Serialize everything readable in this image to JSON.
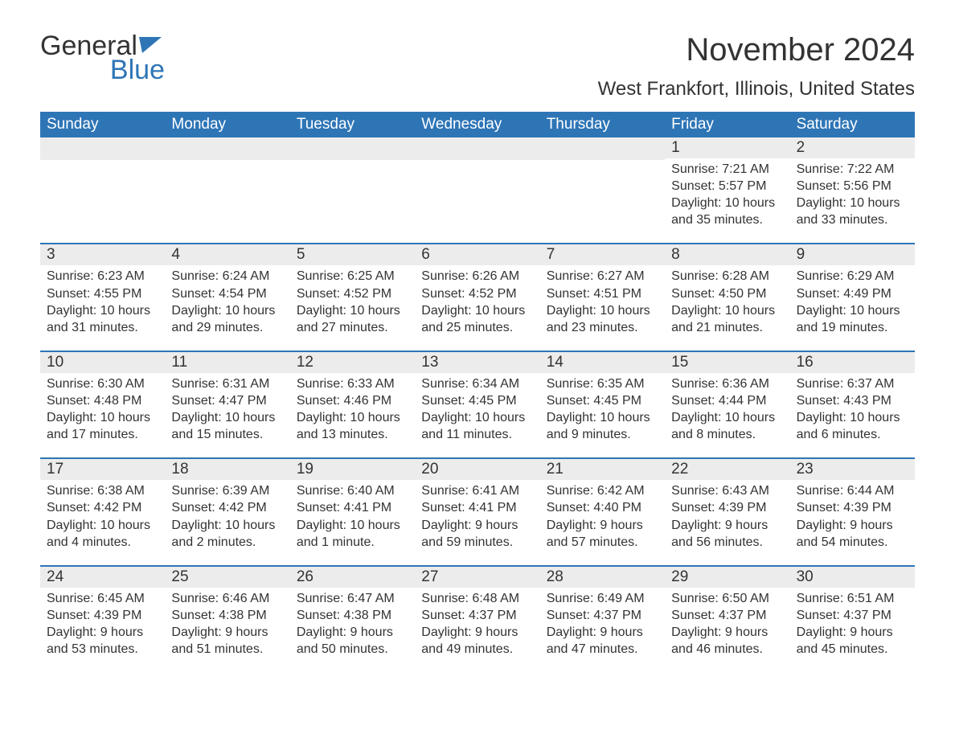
{
  "logo": {
    "text_gray": "General",
    "text_blue": "Blue",
    "icon_color": "#2e75b6"
  },
  "title": "November 2024",
  "location": "West Frankfort, Illinois, United States",
  "colors": {
    "header_bg": "#2e75b6",
    "header_text": "#ffffff",
    "daynum_bg": "#ececec",
    "text": "#333333",
    "border": "#2e75b6",
    "background": "#ffffff"
  },
  "weekdays": [
    "Sunday",
    "Monday",
    "Tuesday",
    "Wednesday",
    "Thursday",
    "Friday",
    "Saturday"
  ],
  "weeks": [
    [
      {
        "day": "",
        "sunrise": "",
        "sunset": "",
        "daylight": ""
      },
      {
        "day": "",
        "sunrise": "",
        "sunset": "",
        "daylight": ""
      },
      {
        "day": "",
        "sunrise": "",
        "sunset": "",
        "daylight": ""
      },
      {
        "day": "",
        "sunrise": "",
        "sunset": "",
        "daylight": ""
      },
      {
        "day": "",
        "sunrise": "",
        "sunset": "",
        "daylight": ""
      },
      {
        "day": "1",
        "sunrise": "Sunrise: 7:21 AM",
        "sunset": "Sunset: 5:57 PM",
        "daylight": "Daylight: 10 hours and 35 minutes."
      },
      {
        "day": "2",
        "sunrise": "Sunrise: 7:22 AM",
        "sunset": "Sunset: 5:56 PM",
        "daylight": "Daylight: 10 hours and 33 minutes."
      }
    ],
    [
      {
        "day": "3",
        "sunrise": "Sunrise: 6:23 AM",
        "sunset": "Sunset: 4:55 PM",
        "daylight": "Daylight: 10 hours and 31 minutes."
      },
      {
        "day": "4",
        "sunrise": "Sunrise: 6:24 AM",
        "sunset": "Sunset: 4:54 PM",
        "daylight": "Daylight: 10 hours and 29 minutes."
      },
      {
        "day": "5",
        "sunrise": "Sunrise: 6:25 AM",
        "sunset": "Sunset: 4:52 PM",
        "daylight": "Daylight: 10 hours and 27 minutes."
      },
      {
        "day": "6",
        "sunrise": "Sunrise: 6:26 AM",
        "sunset": "Sunset: 4:52 PM",
        "daylight": "Daylight: 10 hours and 25 minutes."
      },
      {
        "day": "7",
        "sunrise": "Sunrise: 6:27 AM",
        "sunset": "Sunset: 4:51 PM",
        "daylight": "Daylight: 10 hours and 23 minutes."
      },
      {
        "day": "8",
        "sunrise": "Sunrise: 6:28 AM",
        "sunset": "Sunset: 4:50 PM",
        "daylight": "Daylight: 10 hours and 21 minutes."
      },
      {
        "day": "9",
        "sunrise": "Sunrise: 6:29 AM",
        "sunset": "Sunset: 4:49 PM",
        "daylight": "Daylight: 10 hours and 19 minutes."
      }
    ],
    [
      {
        "day": "10",
        "sunrise": "Sunrise: 6:30 AM",
        "sunset": "Sunset: 4:48 PM",
        "daylight": "Daylight: 10 hours and 17 minutes."
      },
      {
        "day": "11",
        "sunrise": "Sunrise: 6:31 AM",
        "sunset": "Sunset: 4:47 PM",
        "daylight": "Daylight: 10 hours and 15 minutes."
      },
      {
        "day": "12",
        "sunrise": "Sunrise: 6:33 AM",
        "sunset": "Sunset: 4:46 PM",
        "daylight": "Daylight: 10 hours and 13 minutes."
      },
      {
        "day": "13",
        "sunrise": "Sunrise: 6:34 AM",
        "sunset": "Sunset: 4:45 PM",
        "daylight": "Daylight: 10 hours and 11 minutes."
      },
      {
        "day": "14",
        "sunrise": "Sunrise: 6:35 AM",
        "sunset": "Sunset: 4:45 PM",
        "daylight": "Daylight: 10 hours and 9 minutes."
      },
      {
        "day": "15",
        "sunrise": "Sunrise: 6:36 AM",
        "sunset": "Sunset: 4:44 PM",
        "daylight": "Daylight: 10 hours and 8 minutes."
      },
      {
        "day": "16",
        "sunrise": "Sunrise: 6:37 AM",
        "sunset": "Sunset: 4:43 PM",
        "daylight": "Daylight: 10 hours and 6 minutes."
      }
    ],
    [
      {
        "day": "17",
        "sunrise": "Sunrise: 6:38 AM",
        "sunset": "Sunset: 4:42 PM",
        "daylight": "Daylight: 10 hours and 4 minutes."
      },
      {
        "day": "18",
        "sunrise": "Sunrise: 6:39 AM",
        "sunset": "Sunset: 4:42 PM",
        "daylight": "Daylight: 10 hours and 2 minutes."
      },
      {
        "day": "19",
        "sunrise": "Sunrise: 6:40 AM",
        "sunset": "Sunset: 4:41 PM",
        "daylight": "Daylight: 10 hours and 1 minute."
      },
      {
        "day": "20",
        "sunrise": "Sunrise: 6:41 AM",
        "sunset": "Sunset: 4:41 PM",
        "daylight": "Daylight: 9 hours and 59 minutes."
      },
      {
        "day": "21",
        "sunrise": "Sunrise: 6:42 AM",
        "sunset": "Sunset: 4:40 PM",
        "daylight": "Daylight: 9 hours and 57 minutes."
      },
      {
        "day": "22",
        "sunrise": "Sunrise: 6:43 AM",
        "sunset": "Sunset: 4:39 PM",
        "daylight": "Daylight: 9 hours and 56 minutes."
      },
      {
        "day": "23",
        "sunrise": "Sunrise: 6:44 AM",
        "sunset": "Sunset: 4:39 PM",
        "daylight": "Daylight: 9 hours and 54 minutes."
      }
    ],
    [
      {
        "day": "24",
        "sunrise": "Sunrise: 6:45 AM",
        "sunset": "Sunset: 4:39 PM",
        "daylight": "Daylight: 9 hours and 53 minutes."
      },
      {
        "day": "25",
        "sunrise": "Sunrise: 6:46 AM",
        "sunset": "Sunset: 4:38 PM",
        "daylight": "Daylight: 9 hours and 51 minutes."
      },
      {
        "day": "26",
        "sunrise": "Sunrise: 6:47 AM",
        "sunset": "Sunset: 4:38 PM",
        "daylight": "Daylight: 9 hours and 50 minutes."
      },
      {
        "day": "27",
        "sunrise": "Sunrise: 6:48 AM",
        "sunset": "Sunset: 4:37 PM",
        "daylight": "Daylight: 9 hours and 49 minutes."
      },
      {
        "day": "28",
        "sunrise": "Sunrise: 6:49 AM",
        "sunset": "Sunset: 4:37 PM",
        "daylight": "Daylight: 9 hours and 47 minutes."
      },
      {
        "day": "29",
        "sunrise": "Sunrise: 6:50 AM",
        "sunset": "Sunset: 4:37 PM",
        "daylight": "Daylight: 9 hours and 46 minutes."
      },
      {
        "day": "30",
        "sunrise": "Sunrise: 6:51 AM",
        "sunset": "Sunset: 4:37 PM",
        "daylight": "Daylight: 9 hours and 45 minutes."
      }
    ]
  ]
}
